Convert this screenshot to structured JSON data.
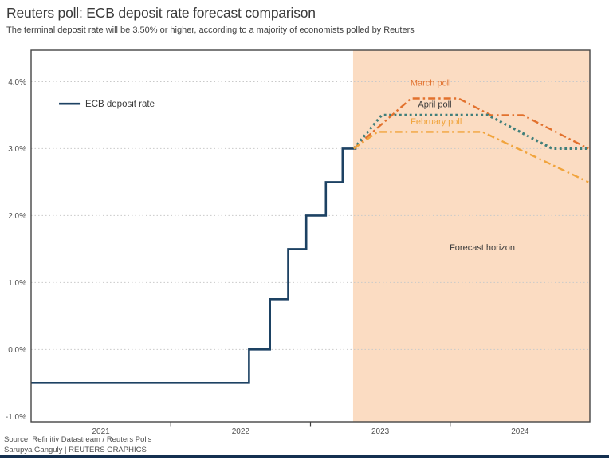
{
  "header": {
    "title": "Reuters poll: ECB deposit rate forecast comparison",
    "subtitle": "The terminal deposit rate will be 3.50% or higher, according to a majority of economists polled by Reuters"
  },
  "footer": {
    "source": "Source: Refinitiv Datastream / Reuters Polls",
    "credit": "Sarupya Ganguly | REUTERS GRAPHICS"
  },
  "colors": {
    "history": "#1d4263",
    "march": "#e2712d",
    "april": "#3f7e7a",
    "february": "#f1a43c",
    "forecast_shade": "#fbdcc2",
    "grid": "#c9c9c9",
    "frame": "#454545",
    "tick": "#3f3f3f",
    "axis_text": "#4f4f4f",
    "label_dark": "#3a3a3a",
    "footer_rule": "#143050"
  },
  "chart_data": {
    "type": "line",
    "title": "Reuters poll: ECB deposit rate forecast comparison",
    "xlabel": "",
    "ylabel": "",
    "xlim": [
      2021.0,
      2025.0
    ],
    "ylim": [
      -1.08,
      4.47
    ],
    "grid_values": [
      4.0,
      3.0,
      2.0,
      1.0,
      0.0
    ],
    "y_ticks": [
      {
        "value": 4.0,
        "label": "4.0%"
      },
      {
        "value": 3.0,
        "label": "3.0%"
      },
      {
        "value": 2.0,
        "label": "2.0%"
      },
      {
        "value": 1.0,
        "label": "1.0%"
      },
      {
        "value": 0.0,
        "label": "0.0%"
      },
      {
        "value": -1.0,
        "label": "-1.0%"
      }
    ],
    "x_ticks": [
      {
        "value": 2021.5,
        "label": "2021"
      },
      {
        "value": 2022.5,
        "label": "2022"
      },
      {
        "value": 2023.5,
        "label": "2023"
      },
      {
        "value": 2024.5,
        "label": "2024"
      }
    ],
    "x_boundary_ticks": [
      2022,
      2023,
      2024
    ],
    "forecast_region": {
      "x_start": 2023.305,
      "x_end": 2025.0,
      "label": "Forecast horizon",
      "label_pos": {
        "x": 2024.23,
        "y": 1.48
      },
      "label_color_key": "label_dark"
    },
    "legend": {
      "label": "ECB deposit rate",
      "pos": {
        "x": 2021.2,
        "y": 3.67
      },
      "color_key": "history"
    },
    "series": [
      {
        "name": "ECB deposit rate",
        "color_key": "history",
        "style": "solid",
        "width": 2.6,
        "points": [
          [
            2021.0,
            -0.5
          ],
          [
            2022.56,
            -0.5
          ],
          [
            2022.56,
            0.0
          ],
          [
            2022.71,
            0.0
          ],
          [
            2022.71,
            0.75
          ],
          [
            2022.84,
            0.75
          ],
          [
            2022.84,
            1.5
          ],
          [
            2022.97,
            1.5
          ],
          [
            2022.97,
            2.0
          ],
          [
            2023.11,
            2.0
          ],
          [
            2023.11,
            2.5
          ],
          [
            2023.23,
            2.5
          ],
          [
            2023.23,
            3.0
          ],
          [
            2023.33,
            3.0
          ]
        ]
      },
      {
        "name": "March poll",
        "color_key": "march",
        "style": "dashdot",
        "width": 2.4,
        "points": [
          [
            2023.31,
            3.0
          ],
          [
            2023.72,
            3.75
          ],
          [
            2024.06,
            3.75
          ],
          [
            2024.29,
            3.5
          ],
          [
            2024.52,
            3.5
          ],
          [
            2024.99,
            3.0
          ]
        ],
        "label_pos": {
          "x": 2023.86,
          "y": 3.94
        },
        "label_color_key": "march"
      },
      {
        "name": "April poll",
        "color_key": "april",
        "style": "dotted",
        "width": 3.2,
        "points": [
          [
            2023.31,
            3.0
          ],
          [
            2023.51,
            3.5
          ],
          [
            2024.27,
            3.5
          ],
          [
            2024.73,
            3.0
          ],
          [
            2024.99,
            3.0
          ]
        ],
        "label_pos": {
          "x": 2023.89,
          "y": 3.62
        },
        "label_color_key": "label_dark"
      },
      {
        "name": "February poll",
        "color_key": "february",
        "style": "dashdot",
        "width": 2.4,
        "points": [
          [
            2023.31,
            3.0
          ],
          [
            2023.48,
            3.25
          ],
          [
            2024.23,
            3.25
          ],
          [
            2024.99,
            2.5
          ]
        ],
        "label_pos": {
          "x": 2023.9,
          "y": 3.36
        },
        "label_color_key": "february"
      }
    ]
  }
}
